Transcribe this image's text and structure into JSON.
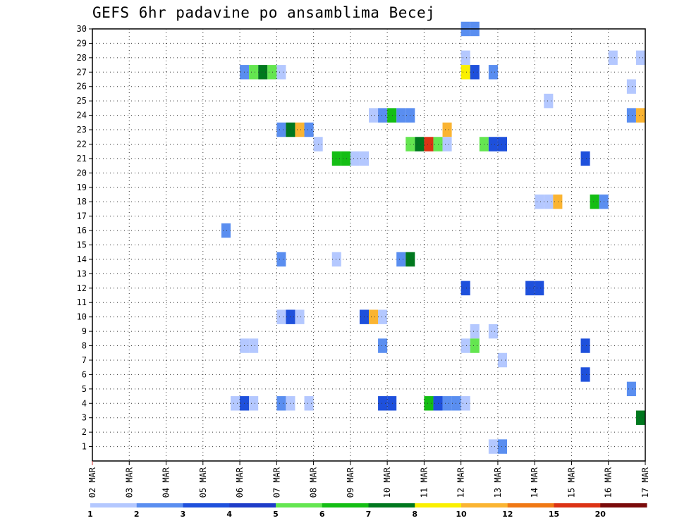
{
  "chart_data": {
    "type": "heatmap",
    "title": "GEFS 6hr padavine po ansamblima Becej",
    "xlabel": "",
    "ylabel": "",
    "x_tick_labels": [
      "02 MAR",
      "03 MAR",
      "04 MAR",
      "05 MAR",
      "06 MAR",
      "07 MAR",
      "08 MAR",
      "09 MAR",
      "10 MAR",
      "11 MAR",
      "12 MAR",
      "13 MAR",
      "14 MAR",
      "15 MAR",
      "16 MAR",
      "17 MAR"
    ],
    "x_range_days": [
      0,
      15
    ],
    "y_tick_labels": [
      "1",
      "2",
      "3",
      "4",
      "5",
      "6",
      "7",
      "8",
      "9",
      "10",
      "11",
      "12",
      "13",
      "14",
      "15",
      "16",
      "17",
      "18",
      "19",
      "20",
      "21",
      "22",
      "23",
      "24",
      "25",
      "26",
      "27",
      "28",
      "29",
      "30"
    ],
    "y_range": [
      0,
      30
    ],
    "grid": true,
    "colorbar": {
      "labels": [
        "1",
        "2",
        "3",
        "4",
        "5",
        "6",
        "7",
        "8",
        "10",
        "12",
        "15",
        "20"
      ],
      "colors": [
        "#b4c8ff",
        "#5a8ef0",
        "#1e50dc",
        "#1e3cc8",
        "#64e650",
        "#14be14",
        "#00781e",
        "#faf000",
        "#fab432",
        "#f07814",
        "#dc3214",
        "#7a0a0a"
      ]
    },
    "cells": [
      {
        "m": 30,
        "d": 10.0,
        "c": 2
      },
      {
        "m": 30,
        "d": 10.25,
        "c": 2
      },
      {
        "m": 28,
        "d": 10.0,
        "c": 1
      },
      {
        "m": 28,
        "d": 14.0,
        "c": 1
      },
      {
        "m": 28,
        "d": 14.75,
        "c": 1
      },
      {
        "m": 27,
        "d": 4.0,
        "c": 2
      },
      {
        "m": 27,
        "d": 4.25,
        "c": 5
      },
      {
        "m": 27,
        "d": 4.5,
        "c": 7
      },
      {
        "m": 27,
        "d": 4.75,
        "c": 5
      },
      {
        "m": 27,
        "d": 5.0,
        "c": 1
      },
      {
        "m": 27,
        "d": 10.0,
        "c": 8
      },
      {
        "m": 27,
        "d": 10.25,
        "c": 3
      },
      {
        "m": 27,
        "d": 10.75,
        "c": 2
      },
      {
        "m": 26,
        "d": 14.5,
        "c": 1
      },
      {
        "m": 25,
        "d": 12.25,
        "c": 1
      },
      {
        "m": 24,
        "d": 7.5,
        "c": 1
      },
      {
        "m": 24,
        "d": 7.75,
        "c": 2
      },
      {
        "m": 24,
        "d": 8.0,
        "c": 6
      },
      {
        "m": 24,
        "d": 8.25,
        "c": 2
      },
      {
        "m": 24,
        "d": 8.5,
        "c": 2
      },
      {
        "m": 24,
        "d": 14.5,
        "c": 2
      },
      {
        "m": 24,
        "d": 14.75,
        "c": 9
      },
      {
        "m": 23,
        "d": 5.0,
        "c": 2
      },
      {
        "m": 23,
        "d": 5.25,
        "c": 7
      },
      {
        "m": 23,
        "d": 5.5,
        "c": 9
      },
      {
        "m": 23,
        "d": 5.75,
        "c": 2
      },
      {
        "m": 23,
        "d": 9.5,
        "c": 9
      },
      {
        "m": 22,
        "d": 6.0,
        "c": 1
      },
      {
        "m": 22,
        "d": 8.5,
        "c": 5
      },
      {
        "m": 22,
        "d": 8.75,
        "c": 7
      },
      {
        "m": 22,
        "d": 9.0,
        "c": 11
      },
      {
        "m": 22,
        "d": 9.25,
        "c": 5
      },
      {
        "m": 22,
        "d": 9.5,
        "c": 1
      },
      {
        "m": 22,
        "d": 10.5,
        "c": 5
      },
      {
        "m": 22,
        "d": 10.75,
        "c": 3
      },
      {
        "m": 22,
        "d": 11.0,
        "c": 3
      },
      {
        "m": 21,
        "d": 6.5,
        "c": 6
      },
      {
        "m": 21,
        "d": 6.75,
        "c": 6
      },
      {
        "m": 21,
        "d": 7.0,
        "c": 1
      },
      {
        "m": 21,
        "d": 7.25,
        "c": 1
      },
      {
        "m": 21,
        "d": 13.25,
        "c": 3
      },
      {
        "m": 18,
        "d": 12.0,
        "c": 1
      },
      {
        "m": 18,
        "d": 12.25,
        "c": 1
      },
      {
        "m": 18,
        "d": 12.5,
        "c": 9
      },
      {
        "m": 18,
        "d": 13.5,
        "c": 6
      },
      {
        "m": 18,
        "d": 13.75,
        "c": 2
      },
      {
        "m": 16,
        "d": 3.5,
        "c": 2
      },
      {
        "m": 14,
        "d": 5.0,
        "c": 2
      },
      {
        "m": 14,
        "d": 6.5,
        "c": 1
      },
      {
        "m": 14,
        "d": 8.25,
        "c": 2
      },
      {
        "m": 14,
        "d": 8.5,
        "c": 7
      },
      {
        "m": 12,
        "d": 10.0,
        "c": 3
      },
      {
        "m": 12,
        "d": 11.75,
        "c": 3
      },
      {
        "m": 12,
        "d": 12.0,
        "c": 3
      },
      {
        "m": 10,
        "d": 5.0,
        "c": 1
      },
      {
        "m": 10,
        "d": 5.25,
        "c": 3
      },
      {
        "m": 10,
        "d": 5.5,
        "c": 1
      },
      {
        "m": 10,
        "d": 7.25,
        "c": 3
      },
      {
        "m": 10,
        "d": 7.5,
        "c": 9
      },
      {
        "m": 10,
        "d": 7.75,
        "c": 1
      },
      {
        "m": 9,
        "d": 10.25,
        "c": 1
      },
      {
        "m": 9,
        "d": 10.75,
        "c": 1
      },
      {
        "m": 8,
        "d": 4.0,
        "c": 1
      },
      {
        "m": 8,
        "d": 4.25,
        "c": 1
      },
      {
        "m": 8,
        "d": 7.75,
        "c": 2
      },
      {
        "m": 8,
        "d": 10.0,
        "c": 1
      },
      {
        "m": 8,
        "d": 10.25,
        "c": 5
      },
      {
        "m": 8,
        "d": 13.25,
        "c": 3
      },
      {
        "m": 7,
        "d": 11.0,
        "c": 1
      },
      {
        "m": 6,
        "d": 13.25,
        "c": 3
      },
      {
        "m": 5,
        "d": 14.5,
        "c": 2
      },
      {
        "m": 4,
        "d": 3.75,
        "c": 1
      },
      {
        "m": 4,
        "d": 4.0,
        "c": 3
      },
      {
        "m": 4,
        "d": 4.25,
        "c": 1
      },
      {
        "m": 4,
        "d": 5.0,
        "c": 2
      },
      {
        "m": 4,
        "d": 5.25,
        "c": 1
      },
      {
        "m": 4,
        "d": 5.75,
        "c": 1
      },
      {
        "m": 4,
        "d": 7.75,
        "c": 3
      },
      {
        "m": 4,
        "d": 8.0,
        "c": 3
      },
      {
        "m": 4,
        "d": 9.0,
        "c": 6
      },
      {
        "m": 4,
        "d": 9.25,
        "c": 3
      },
      {
        "m": 4,
        "d": 9.5,
        "c": 2
      },
      {
        "m": 4,
        "d": 9.75,
        "c": 2
      },
      {
        "m": 4,
        "d": 10.0,
        "c": 1
      },
      {
        "m": 3,
        "d": 14.75,
        "c": 7
      },
      {
        "m": 1,
        "d": 10.75,
        "c": 1
      },
      {
        "m": 1,
        "d": 11.0,
        "c": 2
      }
    ]
  }
}
